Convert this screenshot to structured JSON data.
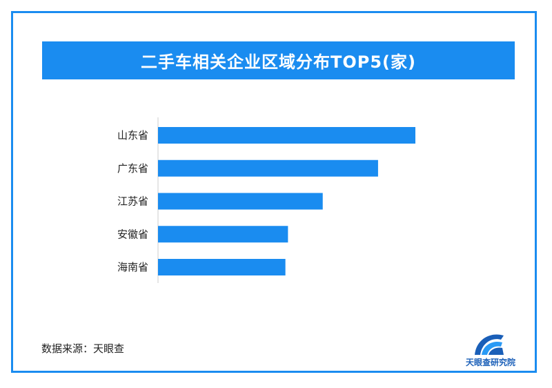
{
  "title": "二手车相关企业区域分布TOP5(家)",
  "source": "数据来源：天眼查",
  "logo": {
    "text": "天眼查研究院",
    "icon": "tianyancha-logo-icon"
  },
  "colors": {
    "accent": "#1a8cf0",
    "bar": "#1a8cf0",
    "axis": "#cccccc"
  },
  "chart_data": {
    "type": "bar",
    "orientation": "horizontal",
    "categories": [
      "山东省",
      "广东省",
      "江苏省",
      "安徽省",
      "海南省"
    ],
    "series": [
      {
        "values": [
          100,
          85.5,
          64,
          50.5,
          49.5
        ]
      }
    ],
    "xlim": [
      0,
      100
    ],
    "grid": false,
    "legend": "none"
  }
}
